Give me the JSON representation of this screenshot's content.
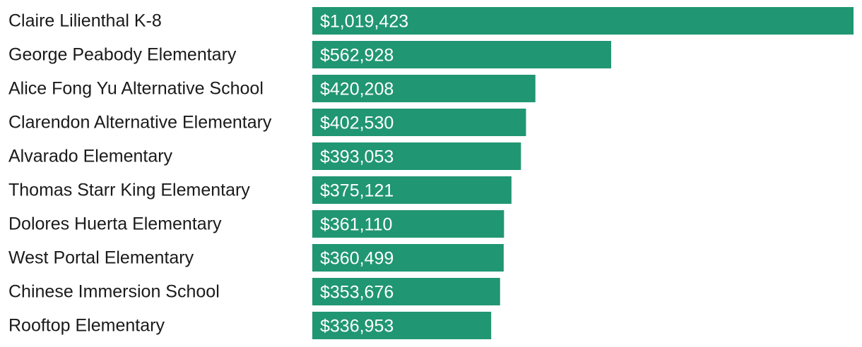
{
  "chart_data": {
    "type": "bar",
    "orientation": "horizontal",
    "categories": [
      "Claire Lilienthal K-8",
      "George Peabody Elementary",
      "Alice Fong Yu Alternative School",
      "Clarendon Alternative Elementary",
      "Alvarado Elementary",
      "Thomas Starr King Elementary",
      "Dolores Huerta Elementary",
      "West Portal Elementary",
      "Chinese Immersion School",
      "Rooftop Elementary"
    ],
    "values": [
      1019423,
      562928,
      420208,
      402530,
      393053,
      375121,
      361110,
      360499,
      353676,
      336953
    ],
    "value_labels": [
      "$1,019,423",
      "$562,928",
      "$420,208",
      "$402,530",
      "$393,053",
      "$375,121",
      "$361,110",
      "$360,499",
      "$353,676",
      "$336,953"
    ],
    "xlim": [
      0,
      1019423
    ],
    "grid": false,
    "legend": "none",
    "bar_color": "#209672"
  }
}
